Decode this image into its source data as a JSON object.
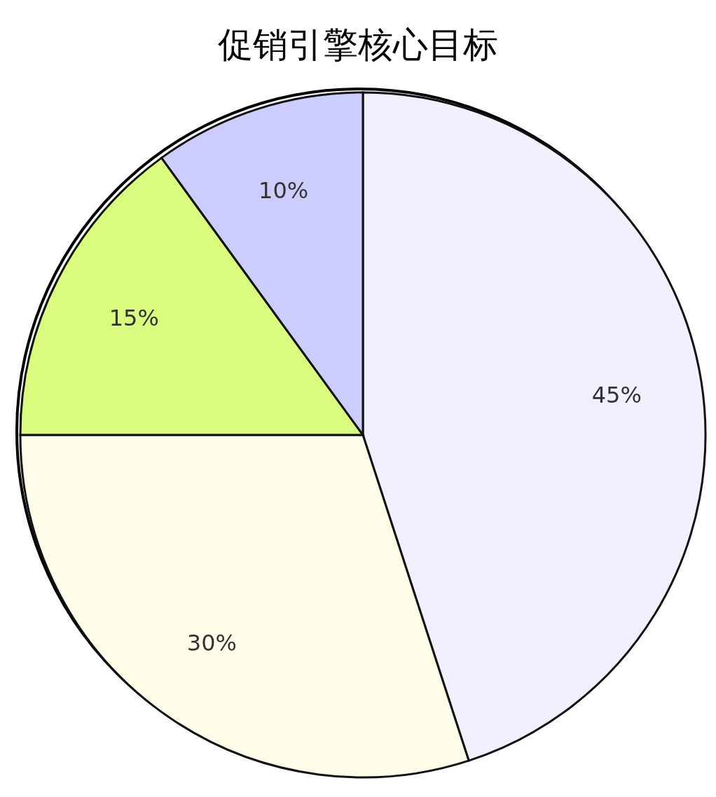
{
  "chart_data": {
    "type": "pie",
    "title": "促销引擎核心目标",
    "categories": [
      null,
      null,
      null,
      null
    ],
    "values": [
      45,
      30,
      15,
      10
    ],
    "value_labels": [
      "45%",
      "30%",
      "15%",
      "10%"
    ],
    "colors": [
      "#f0f0fe",
      "#fefee9",
      "#d9fb7e",
      "#cdcdfd"
    ],
    "legend": false
  }
}
